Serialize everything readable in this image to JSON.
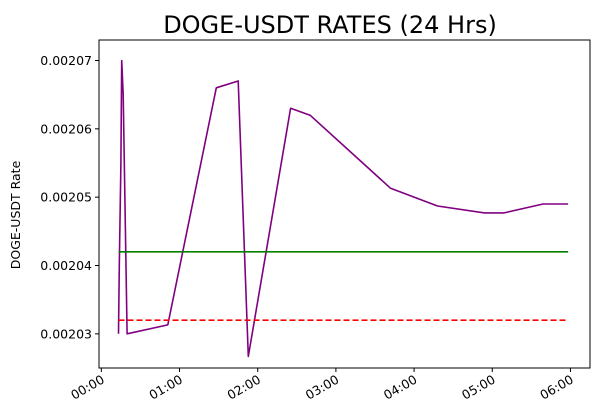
{
  "chart_data": {
    "type": "line",
    "title": "DOGE-USDT RATES (24 Hrs)",
    "xlabel": "",
    "ylabel": "DOGE-USDT Rate",
    "x_tick_labels": [
      "00:00",
      "01:00",
      "02:00",
      "03:00",
      "04:00",
      "05:00",
      "06:00"
    ],
    "x_ticks_hours": [
      0,
      1,
      2,
      3,
      4,
      5,
      6
    ],
    "y_ticks": [
      0.00203,
      0.00204,
      0.00205,
      0.00206,
      0.00207
    ],
    "y_tick_labels": [
      "0.00203",
      "0.00204",
      "0.00205",
      "0.00206",
      "0.00207"
    ],
    "xlim_hours": [
      -0.03,
      6.25
    ],
    "ylim": [
      0.002025,
      0.002073
    ],
    "grid": false,
    "legend": "none",
    "series": [
      {
        "style": "solid",
        "color": "#800080",
        "x_hours": [
          0.22,
          0.23,
          0.25,
          0.26,
          0.28,
          0.33,
          0.85,
          1.47,
          1.75,
          1.88,
          2.42,
          2.67,
          3.7,
          4.3,
          4.9,
          5.15,
          5.65,
          5.97
        ],
        "values": [
          0.00203,
          0.00204,
          0.002055,
          0.00207,
          0.002065,
          0.00203,
          0.0020313,
          0.002066,
          0.002067,
          0.0020267,
          0.002063,
          0.002062,
          0.0020513,
          0.0020487,
          0.0020477,
          0.0020477,
          0.002049,
          0.002049
        ]
      },
      {
        "style": "solid",
        "color": "#008000",
        "x_hours": [
          0.22,
          5.97
        ],
        "values": [
          0.002042,
          0.002042
        ]
      },
      {
        "style": "dashed",
        "color": "#ff0000",
        "x_hours": [
          0.22,
          5.97
        ],
        "values": [
          0.002032,
          0.002032
        ]
      }
    ]
  }
}
